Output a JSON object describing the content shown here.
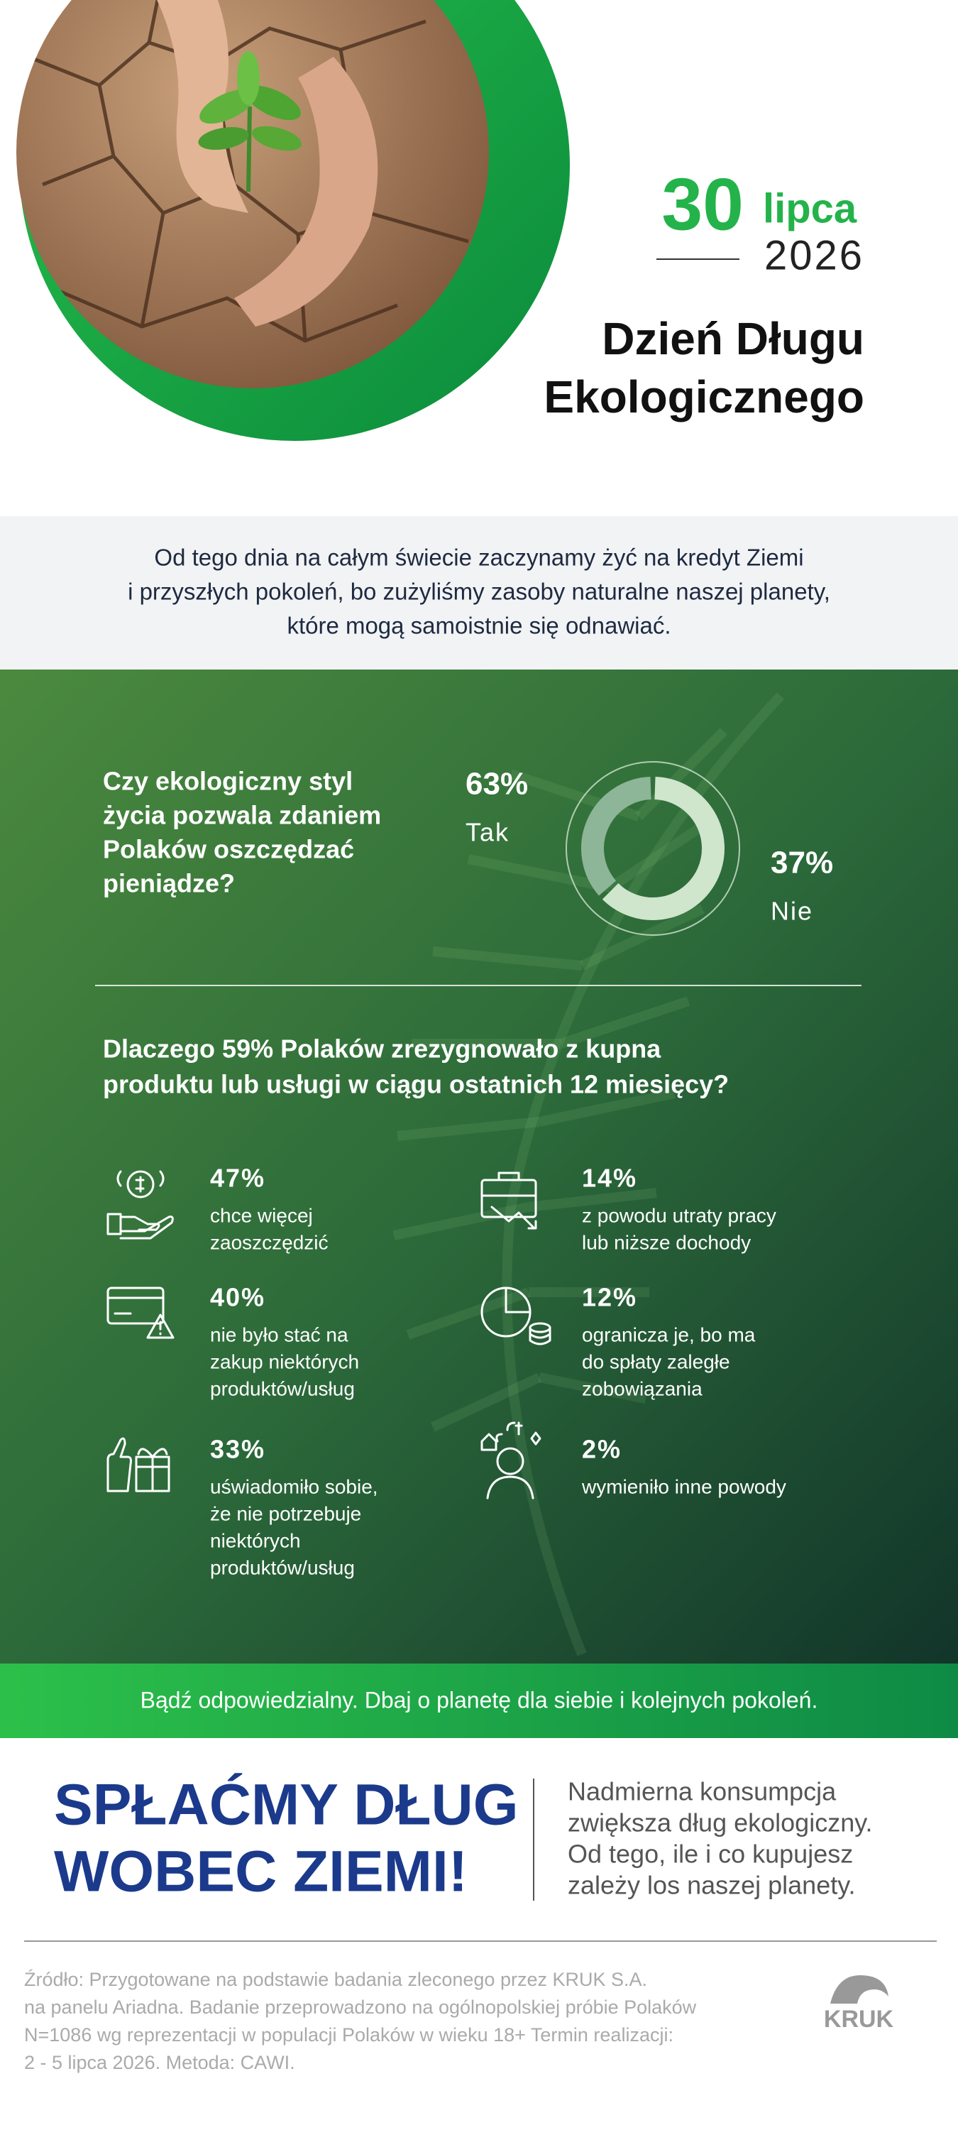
{
  "header": {
    "day": "30",
    "month": "lipca",
    "year": "2026",
    "title_lines": [
      "Dzień Długu",
      "Ekologicznego"
    ]
  },
  "intro": {
    "lines": [
      "Od tego dnia na całym świecie zaczynamy żyć na kredyt Ziemi",
      "i przyszłych pokoleń, bo zużyliśmy zasoby naturalne naszej planety,",
      "które mogą samoistnie się odnawiać."
    ]
  },
  "survey": {
    "question_lines": [
      "Czy ekologiczny styl",
      "życia pozwala zdaniem",
      "Polaków oszczędzać",
      "pieniądze?"
    ],
    "answers": [
      {
        "value": 63,
        "label": "63%",
        "name": "Tak"
      },
      {
        "value": 37,
        "label": "37%",
        "name": "Nie"
      }
    ]
  },
  "reasons": {
    "question_lines": [
      "Dlaczego 59% Polaków zrezygnowało z kupna",
      "produktu lub usługi w ciągu ostatnich 12 miesięcy?"
    ],
    "items": [
      {
        "pct": "47%",
        "text_lines": [
          "chce więcej",
          "zaoszczędzić"
        ]
      },
      {
        "pct": "14%",
        "text_lines": [
          "z powodu utraty pracy",
          "lub niższe dochody"
        ]
      },
      {
        "pct": "40%",
        "text_lines": [
          "nie było stać na",
          "zakup niektórych",
          "produktów/usług"
        ]
      },
      {
        "pct": "12%",
        "text_lines": [
          "ogranicza je, bo ma",
          "do spłaty zaległe",
          "zobowiązania"
        ]
      },
      {
        "pct": "33%",
        "text_lines": [
          "uświadomiło sobie,",
          "że nie potrzebuje",
          "niektórych",
          "produktów/usług"
        ]
      },
      {
        "pct": "2%",
        "text_lines": [
          "wymieniło inne powody"
        ]
      }
    ]
  },
  "banner": "Bądź odpowiedzialny. Dbaj o planetę dla siebie i kolejnych pokoleń.",
  "slogan": {
    "heading_lines": [
      "SPŁAĆMY DŁUG",
      "WOBEC ZIEMI!"
    ],
    "text_lines": [
      "Nadmierna konsumpcja",
      "zwiększa dług ekologiczny.",
      "Od tego, ile i co kupujesz",
      "zależy los naszej planety."
    ]
  },
  "source": {
    "lines": [
      "Źródło:  Przygotowane na podstawie badania zleconego przez KRUK S.A.",
      "na panelu Ariadna. Badanie przeprowadzono na ogólnopolskiej próbie Polaków",
      "N=1086 wg reprezentacji w populacji Polaków w wieku 18+ Termin realizacji:",
      "2 - 5 lipca 2026. Metoda: CAWI."
    ]
  },
  "logo": "KRUK"
}
